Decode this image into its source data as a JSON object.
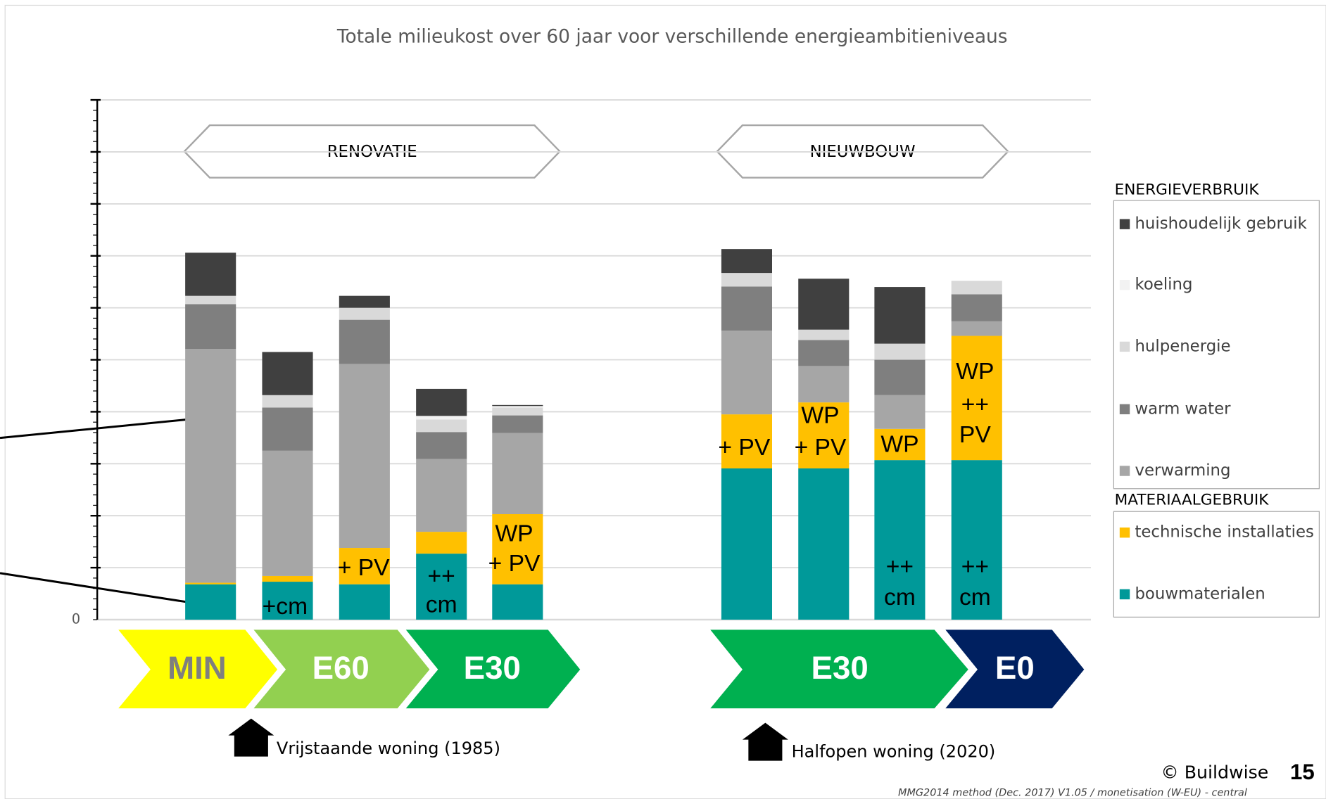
{
  "chart_data": {
    "type": "stacked_bar",
    "title": "Totale milieukost over 60 jaar voor verschillende energieambitieniveaus",
    "categories": [
      null,
      null,
      null,
      null,
      null,
      null,
      null,
      null,
      null
    ],
    "series": [
      {
        "name": "bouwmaterialen",
        "color": "#009999",
        "values": [
          0.68,
          0.73,
          0.68,
          1.27,
          0.68,
          2.91,
          2.91,
          3.07,
          3.07
        ]
      },
      {
        "name": "technische installaties",
        "color": "#ffc000",
        "values": [
          0.03,
          0.11,
          0.7,
          0.42,
          1.35,
          1.04,
          1.27,
          0.6,
          2.39
        ]
      },
      {
        "name": "verwarming",
        "color": "#a6a6a6",
        "values": [
          4.5,
          2.41,
          3.54,
          1.4,
          1.56,
          1.61,
          0.7,
          0.65,
          0.28
        ]
      },
      {
        "name": "warm water",
        "color": "#7f7f7f",
        "values": [
          0.86,
          0.83,
          0.85,
          0.52,
          0.34,
          0.85,
          0.5,
          0.68,
          0.52
        ]
      },
      {
        "name": "hulpenergie",
        "color": "#d9d9d9",
        "values": [
          0.16,
          0.24,
          0.23,
          0.24,
          0.15,
          0.26,
          0.2,
          0.31,
          0.26
        ]
      },
      {
        "name": "koeling",
        "color": "#f2f2f2",
        "values": [
          0,
          0,
          0,
          0.07,
          0.03,
          0,
          0,
          0,
          0
        ]
      },
      {
        "name": "huishoudelijk gebruik",
        "color": "#404040",
        "values": [
          0.83,
          0.83,
          0.23,
          0.52,
          0.02,
          0.46,
          0.98,
          1.09,
          0
        ]
      }
    ],
    "ylim": [
      0,
      10
    ],
    "yticks": [
      0
    ],
    "gridlines": [
      1,
      2,
      3,
      4,
      5,
      6,
      7,
      8,
      9,
      10
    ],
    "grid": true,
    "bar_labels": [
      [],
      [
        "+cm"
      ],
      [
        "+ PV"
      ],
      [
        "++",
        "cm"
      ],
      [
        "WP",
        "+ PV"
      ],
      [
        "+ PV"
      ],
      [
        "WP",
        "+ PV"
      ],
      [
        "WP",
        "++",
        "cm"
      ],
      [
        "WP",
        "++",
        "PV",
        "++",
        "cm"
      ]
    ],
    "groups": [
      "RENOVATIE",
      "NIEUWBOUW"
    ],
    "legend_groups": [
      "ENERGIEVERBRUIK",
      "MATERIAALGEBRUIK"
    ],
    "levels": [
      "MIN",
      "E60",
      "E30",
      "E30",
      "E0"
    ],
    "captions": [
      "Vrijstaande woning (1985)",
      "Halfopen woning (2020)"
    ],
    "copyright": "© Buildwise",
    "page_number": "15",
    "source": "MMG2014 method (Dec. 2017) V1.05 / monetisation (W-EU) - central"
  }
}
